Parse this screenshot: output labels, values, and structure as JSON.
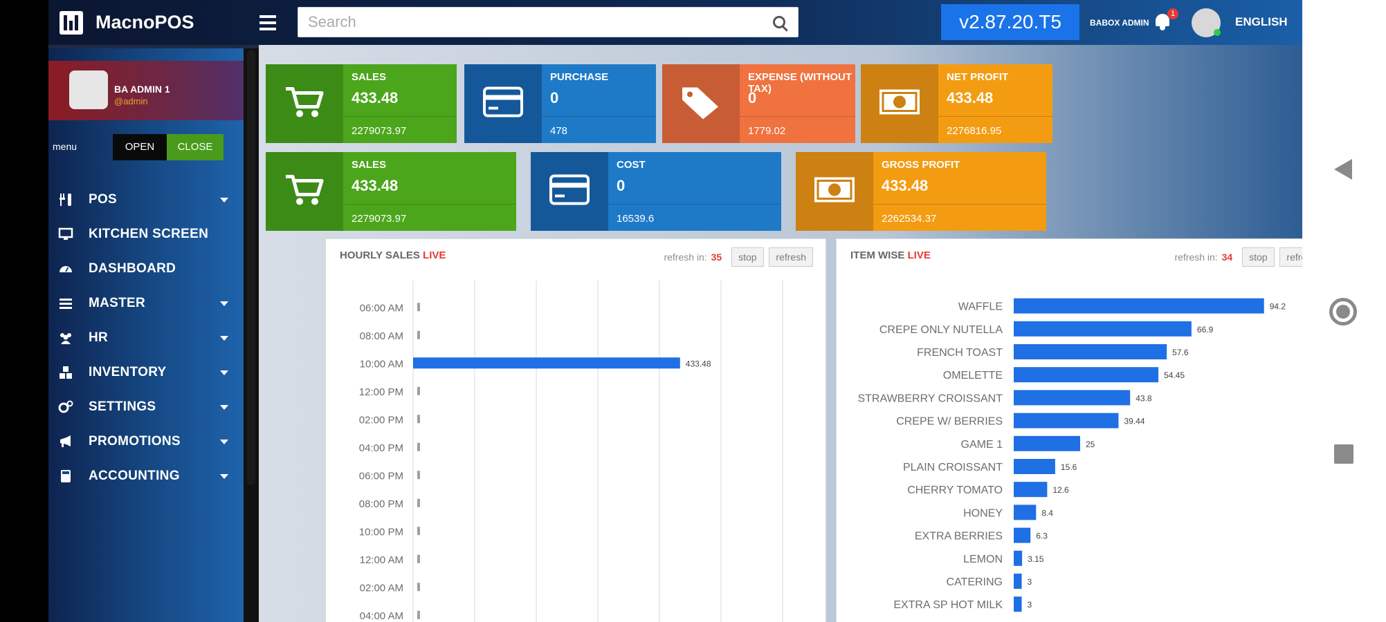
{
  "app": {
    "title": "MacnoPOS"
  },
  "header": {
    "search_placeholder": "Search",
    "version": "v2.87.20.T5",
    "username": "BABOX ADMIN",
    "notification_count": "1",
    "language": "ENGLISH"
  },
  "sidebar": {
    "profile": {
      "name": "BA ADMIN 1",
      "handle": "@admin"
    },
    "menu_label": "menu",
    "open_label": "OPEN",
    "close_label": "CLOSE",
    "items": [
      {
        "label": "POS",
        "icon": "cutlery-icon",
        "has_submenu": true
      },
      {
        "label": "KITCHEN SCREEN",
        "icon": "monitor-icon",
        "has_submenu": false
      },
      {
        "label": "DASHBOARD",
        "icon": "dashboard-icon",
        "has_submenu": false
      },
      {
        "label": "MASTER",
        "icon": "list-icon",
        "has_submenu": true
      },
      {
        "label": "HR",
        "icon": "users-icon",
        "has_submenu": true
      },
      {
        "label": "INVENTORY",
        "icon": "cubes-icon",
        "has_submenu": true
      },
      {
        "label": "SETTINGS",
        "icon": "gears-icon",
        "has_submenu": true
      },
      {
        "label": "PROMOTIONS",
        "icon": "megaphone-icon",
        "has_submenu": true
      },
      {
        "label": "ACCOUNTING",
        "icon": "calculator-icon",
        "has_submenu": true
      }
    ]
  },
  "stats_row1": [
    {
      "title": "SALES",
      "value": "433.48",
      "footer": "2279073.97",
      "color": "green",
      "icon": "cart-icon"
    },
    {
      "title": "PURCHASE",
      "value": "0",
      "footer": "478",
      "color": "blue",
      "icon": "credit-card-icon"
    },
    {
      "title": "EXPENSE (WITHOUT TAX)",
      "value": "0",
      "footer": "1779.02",
      "color": "orange",
      "icon": "tags-icon"
    },
    {
      "title": "NET PROFIT",
      "value": "433.48",
      "footer": "2276816.95",
      "color": "amber",
      "icon": "money-icon"
    }
  ],
  "stats_row2": [
    {
      "title": "SALES",
      "value": "433.48",
      "footer": "2279073.97",
      "color": "green",
      "icon": "cart-icon"
    },
    {
      "title": "COST",
      "value": "0",
      "footer": "16539.6",
      "color": "blue",
      "icon": "credit-card-icon"
    },
    {
      "title": "GROSS PROFIT",
      "value": "433.48",
      "footer": "2262534.37",
      "color": "amber",
      "icon": "money-icon"
    }
  ],
  "hourly_panel": {
    "title": "HOURLY SALES",
    "live": "LIVE",
    "refresh_label": "refresh in:",
    "countdown": "35",
    "stop_label": "stop",
    "refresh_button": "refresh"
  },
  "item_panel": {
    "title": "ITEM WISE",
    "live": "LIVE",
    "refresh_label": "refresh in:",
    "countdown": "34",
    "stop_label": "stop",
    "refresh_button": "refresh"
  },
  "chart_data": [
    {
      "type": "bar",
      "orientation": "horizontal",
      "categories": [
        "06:00 AM",
        "08:00 AM",
        "10:00 AM",
        "12:00 PM",
        "02:00 PM",
        "04:00 PM",
        "06:00 PM",
        "08:00 PM",
        "10:00 PM",
        "12:00 AM",
        "02:00 AM",
        "04:00 AM"
      ],
      "values": [
        0,
        0,
        433.48,
        0,
        0,
        0,
        0,
        0,
        0,
        0,
        0,
        0
      ],
      "value_labels": [
        "",
        "",
        "433.48",
        "",
        "",
        "",
        "",
        "",
        "",
        "",
        "",
        ""
      ],
      "xlim": [
        0,
        600
      ],
      "grid": true,
      "bar_color": "#1f6fe5"
    },
    {
      "type": "bar",
      "orientation": "horizontal",
      "categories": [
        "WAFFLE",
        "CREPE ONLY NUTELLA",
        "FRENCH TOAST",
        "OMELETTE",
        "STRAWBERRY CROISSANT",
        "CREPE W/ BERRIES",
        "GAME 1",
        "PLAIN CROISSANT",
        "CHERRY TOMATO",
        "HONEY",
        "EXTRA BERRIES",
        "LEMON",
        "CATERING",
        "EXTRA SP HOT MILK"
      ],
      "values": [
        94.2,
        66.9,
        57.6,
        54.45,
        43.8,
        39.44,
        25,
        15.6,
        12.6,
        8.4,
        6.3,
        3.15,
        3,
        3
      ],
      "value_labels": [
        "94.2",
        "66.9",
        "57.6",
        "54.45",
        "43.8",
        "39.44",
        "25",
        "15.6",
        "12.6",
        "8.4",
        "6.3",
        "3.15",
        "3",
        "3"
      ],
      "xlim": [
        0,
        100
      ],
      "grid": false,
      "bar_color": "#1f6fe5"
    }
  ]
}
